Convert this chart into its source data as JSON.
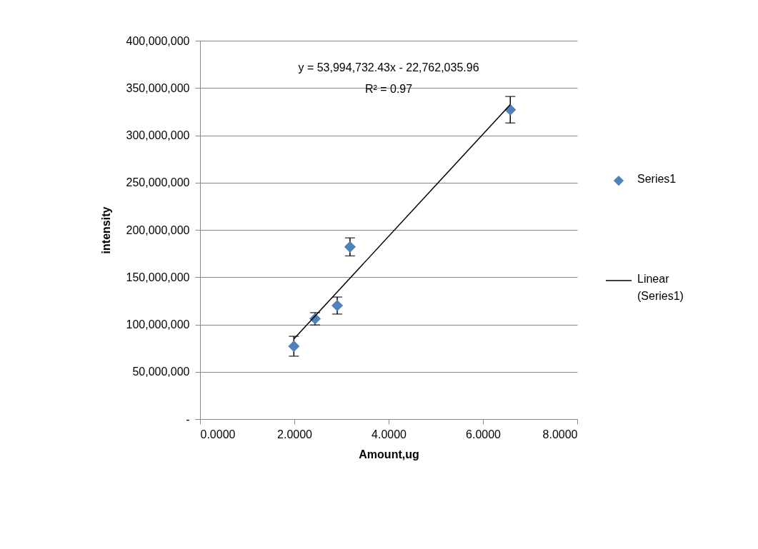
{
  "chart_data": {
    "type": "scatter",
    "xlabel": "Amount,ug",
    "ylabel": "intensity",
    "grid": "y",
    "legend": "right",
    "xlim": [
      0,
      8
    ],
    "xticks": [
      {
        "value": 0,
        "label": "0.0000"
      },
      {
        "value": 2,
        "label": "2.0000"
      },
      {
        "value": 4,
        "label": "4.0000"
      },
      {
        "value": 6,
        "label": "6.0000"
      },
      {
        "value": 8,
        "label": "8.0000"
      }
    ],
    "ylim": [
      0,
      400000000
    ],
    "yticks": [
      {
        "value": 0,
        "label": "-"
      },
      {
        "value": 50000000,
        "label": "50,000,000"
      },
      {
        "value": 100000000,
        "label": "100,000,000"
      },
      {
        "value": 150000000,
        "label": "150,000,000"
      },
      {
        "value": 200000000,
        "label": "200,000,000"
      },
      {
        "value": 250000000,
        "label": "250,000,000"
      },
      {
        "value": 300000000,
        "label": "300,000,000"
      },
      {
        "value": 350000000,
        "label": "350,000,000"
      },
      {
        "value": 400000000,
        "label": "400,000,000"
      }
    ],
    "series": [
      {
        "name": "Series1",
        "marker": "diamond",
        "color": "#4f81bd",
        "x": [
          1.99,
          2.44,
          2.91,
          3.18,
          6.58
        ],
        "values": [
          77000000,
          106000000,
          120000000,
          182000000,
          327000000
        ],
        "errors": [
          10500000,
          6500000,
          9000000,
          9500000,
          14000000
        ]
      },
      {
        "name": "Linear (Series1)",
        "type": "line",
        "color": "#000000",
        "x": [
          1.99,
          6.58
        ],
        "values": [
          84700000,
          332500000
        ]
      }
    ],
    "annotations": [
      "y = 53,994,732.43x - 22,762,035.96",
      "R² = 0.97"
    ]
  }
}
